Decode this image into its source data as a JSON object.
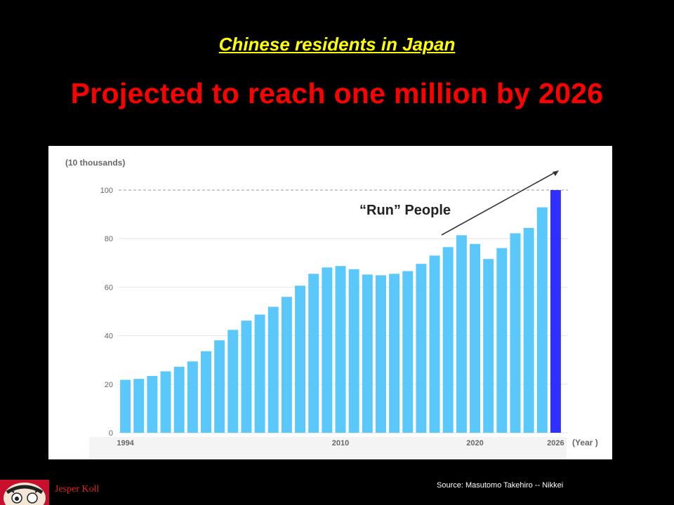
{
  "slide": {
    "title": "Chinese residents in Japan",
    "headline": "Projected to reach one million by 2026",
    "source": "Source: Masutomo Takehiro -- Nikkei",
    "author": "Jesper Koll"
  },
  "colors": {
    "background": "#000000",
    "title": "#ffff00",
    "headline": "#ff0000",
    "bar": "#5ac8fa",
    "projected_bar": "#2f2fff",
    "author": "#e0201e"
  },
  "chart_data": {
    "type": "bar",
    "ylabel": "(10 thousands)",
    "xlabel": "(Year )",
    "ylim": [
      0,
      100
    ],
    "yticks": [
      0,
      20,
      40,
      60,
      80,
      100
    ],
    "x_tick_labels": [
      {
        "year": 1994,
        "label": "1994"
      },
      {
        "year": 2010,
        "label": "2010"
      },
      {
        "year": 2020,
        "label": "2020"
      },
      {
        "year": 2026,
        "label": "2026"
      }
    ],
    "reference_line": {
      "value": 100,
      "style": "dashed"
    },
    "annotation": "“Run” People",
    "categories": [
      1994,
      1995,
      1996,
      1997,
      1998,
      1999,
      2000,
      2001,
      2002,
      2003,
      2004,
      2005,
      2006,
      2007,
      2008,
      2009,
      2010,
      2011,
      2012,
      2013,
      2014,
      2015,
      2016,
      2017,
      2018,
      2019,
      2020,
      2021,
      2022,
      2023,
      2024,
      2025,
      2026
    ],
    "values": [
      21.8,
      22.2,
      23.4,
      25.3,
      27.2,
      29.4,
      33.6,
      38.1,
      42.4,
      46.2,
      48.7,
      51.9,
      56.0,
      60.6,
      65.5,
      68.1,
      68.7,
      67.4,
      65.2,
      64.9,
      65.5,
      66.6,
      69.6,
      73.0,
      76.5,
      81.4,
      77.8,
      71.6,
      76.1,
      82.2,
      84.4,
      92.9,
      100.0
    ],
    "projected_categories": [
      2026
    ]
  }
}
